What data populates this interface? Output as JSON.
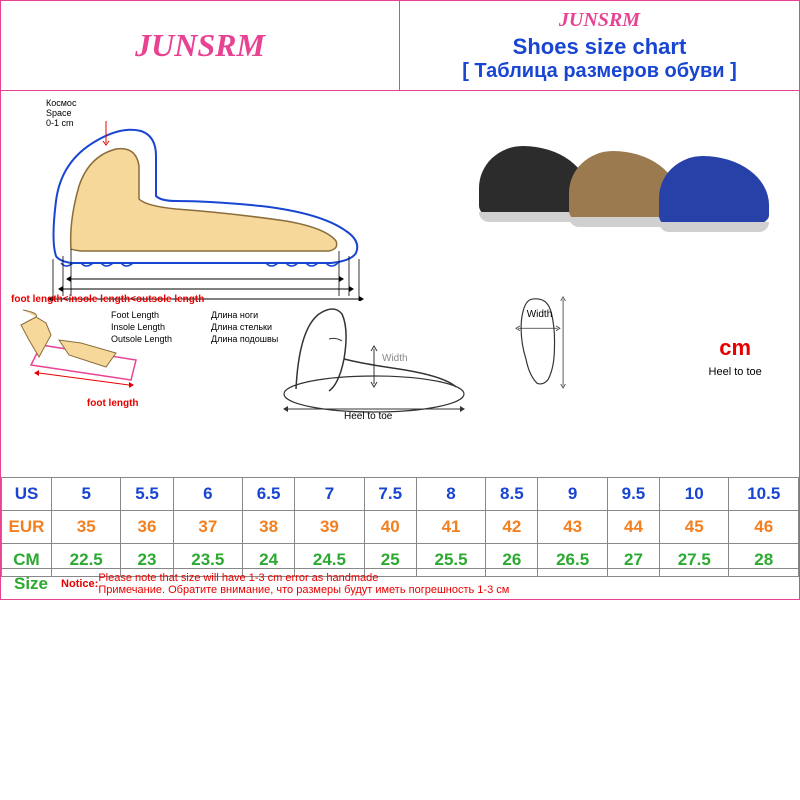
{
  "brand": "JUNSRM",
  "header": {
    "title": "Shoes size chart",
    "subtitle": "[ Таблица размеров обуви ]"
  },
  "colors": {
    "pink": "#e84393",
    "blue": "#1845d1",
    "orange": "#f38020",
    "green": "#2ca930",
    "red": "#e80000",
    "border": "#888888"
  },
  "diagram": {
    "space_ru": "Космос",
    "space_en": "Space",
    "space_val": "0-1 cm",
    "measures": [
      {
        "en": "Foot Length",
        "ru": "Длина ноги"
      },
      {
        "en": "Insole Length",
        "ru": "Длина стельки"
      },
      {
        "en": "Outsole Length",
        "ru": "Длина подошвы"
      }
    ],
    "formula": "foot length<insole length<outsole length",
    "foot_length": "foot length",
    "width": "Width",
    "heel_to_toe": "Heel to toe",
    "cm": "cm"
  },
  "shoe_colors": [
    "#2c2c2c",
    "#9c7a50",
    "#2841a8"
  ],
  "table": {
    "rows": [
      {
        "label": "US",
        "color": "#1845d1",
        "values": [
          "5",
          "5.5",
          "6",
          "6.5",
          "7",
          "7.5",
          "8",
          "8.5",
          "9",
          "9.5",
          "10",
          "10.5"
        ]
      },
      {
        "label": "EUR",
        "color": "#f38020",
        "values": [
          "35",
          "36",
          "37",
          "38",
          "39",
          "40",
          "41",
          "42",
          "43",
          "44",
          "45",
          "46"
        ]
      },
      {
        "label": "CM",
        "color": "#2ca930",
        "values": [
          "22.5",
          "23",
          "23.5",
          "24",
          "24.5",
          "25",
          "25.5",
          "26",
          "26.5",
          "27",
          "27.5",
          "28"
        ]
      },
      {
        "label": "Size",
        "color": "#2ca930",
        "notice_label_color": "#e80000"
      }
    ]
  },
  "notice": {
    "label": "Notice:",
    "text_en": "Please note that size will have 1-3 cm error as handmade",
    "text_ru": "Примечание. Обратите внимание, что размеры будут иметь погрешность 1-3 см"
  }
}
